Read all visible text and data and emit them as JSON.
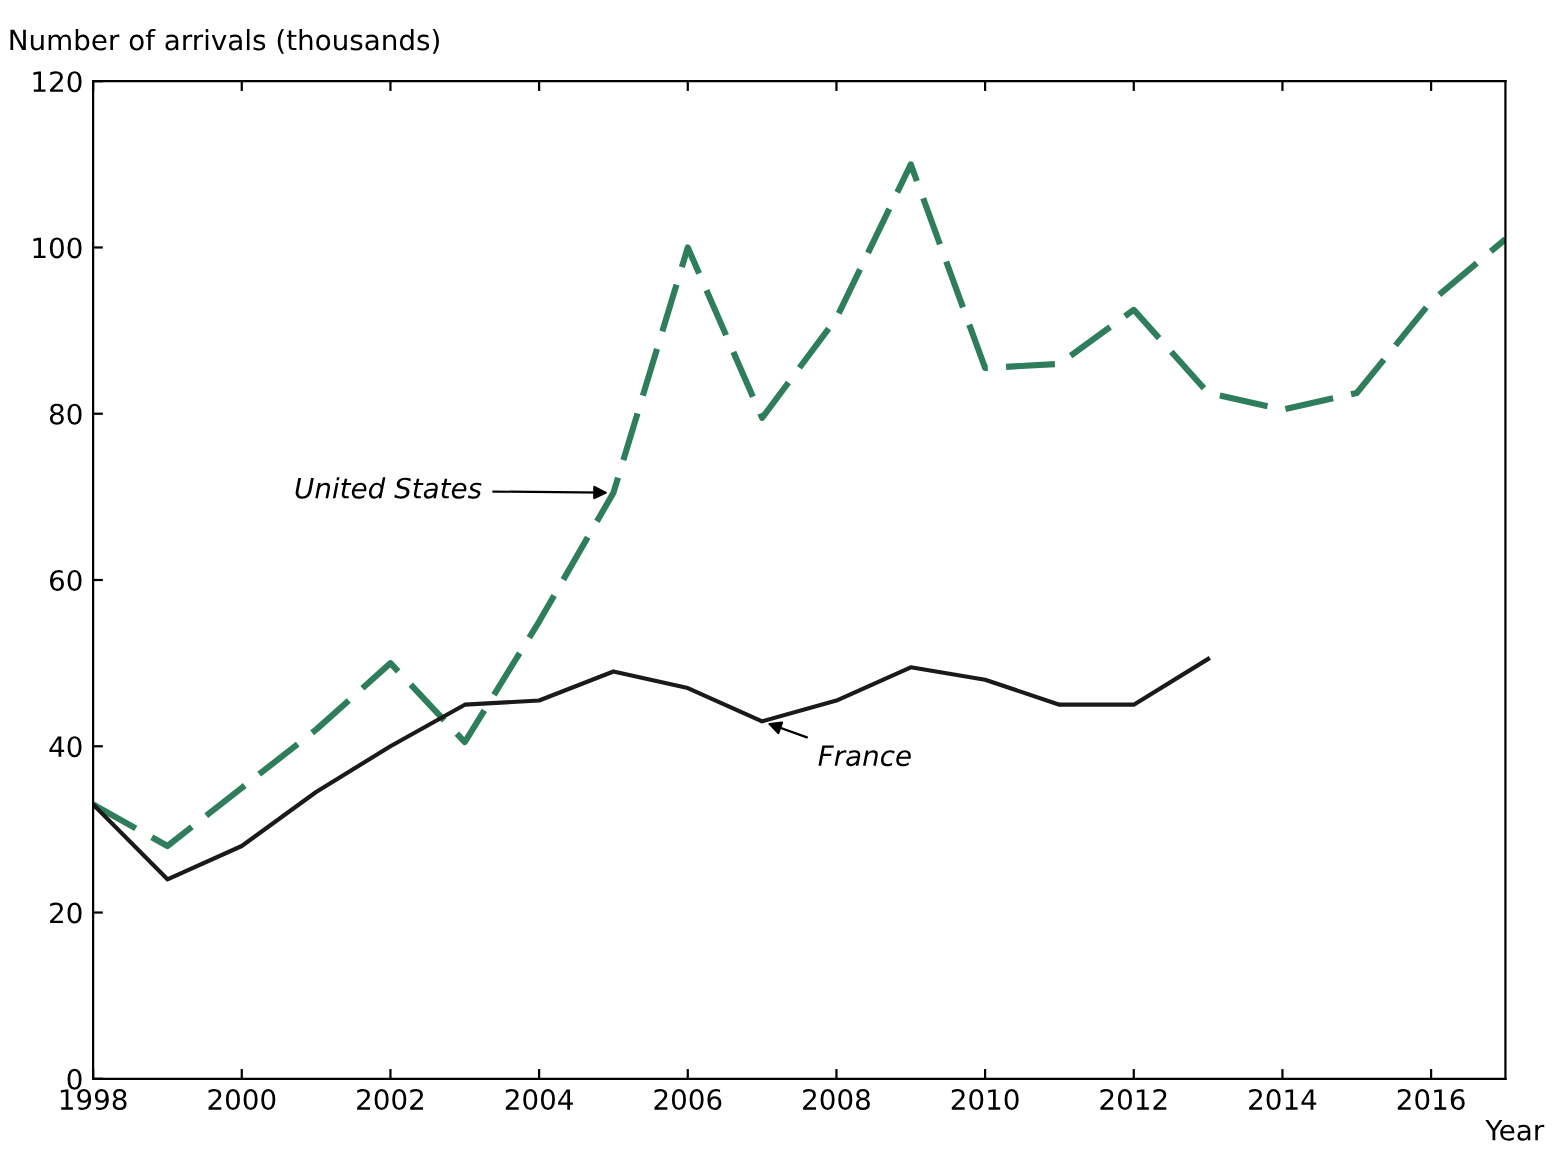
{
  "chart_data": {
    "type": "line",
    "ylabel": "Number of arrivals (thousands)",
    "xlabel": "Year",
    "x": [
      1998,
      1999,
      2000,
      2001,
      2002,
      2003,
      2004,
      2005,
      2006,
      2007,
      2008,
      2009,
      2010,
      2011,
      2012,
      2013,
      2014,
      2015,
      2016,
      2017
    ],
    "series": [
      {
        "color": "#2e7d5b",
        "line_style": "dashed",
        "values": [
          33,
          28,
          35,
          42,
          50,
          40.5,
          55,
          70.5,
          100,
          79.5,
          91.5,
          110,
          85.5,
          86,
          92.5,
          82.5,
          80.5,
          82.5,
          93.5,
          101
        ]
      },
      {
        "color": "#1a1a1a",
        "line_style": "solid",
        "values": [
          33,
          24,
          28,
          34.5,
          40,
          45,
          45.5,
          49,
          47,
          43,
          45.5,
          49.5,
          48,
          45,
          45,
          50.5,
          null,
          null,
          null,
          null
        ]
      }
    ],
    "annotations": [
      {
        "text": "United States",
        "x": 2005,
        "y": 70.5
      },
      {
        "text": "France",
        "x": 2007,
        "y": 43
      }
    ],
    "xlim": [
      1998,
      2017
    ],
    "ylim": [
      0,
      120
    ],
    "xticks": [
      1998,
      2000,
      2002,
      2004,
      2006,
      2008,
      2010,
      2012,
      2014,
      2016
    ],
    "yticks": [
      0,
      20,
      40,
      60,
      80,
      100,
      120
    ],
    "grid": false,
    "legend": false,
    "marker": "none"
  }
}
